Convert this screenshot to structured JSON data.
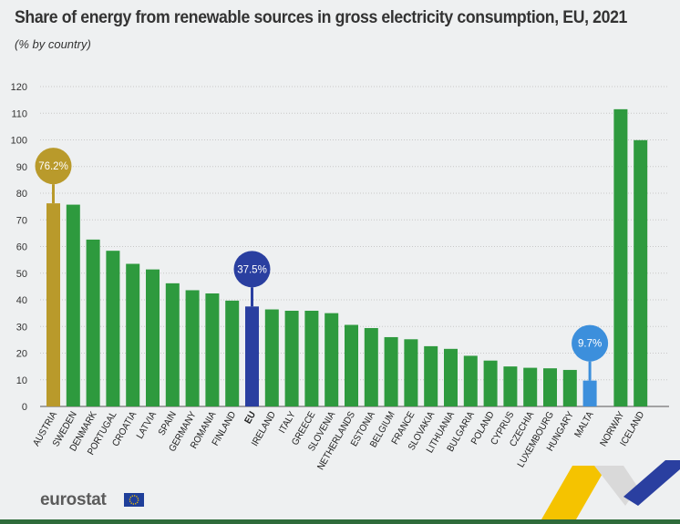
{
  "header": {
    "title": "Share of energy from renewable sources in gross electricity consumption, EU, 2021",
    "subtitle": "(% by country)"
  },
  "footer": {
    "logo_text": "eurostat"
  },
  "colors": {
    "default_bar": "#2e9a3e",
    "highlight_max": "#b99a2b",
    "highlight_eu": "#2a3fa0",
    "highlight_min": "#3c8fdc",
    "axis_text": "#333333",
    "grid": "#c8c8c8"
  },
  "chart_data": {
    "type": "bar",
    "title": "Share of energy from renewable sources in gross electricity consumption, EU, 2021",
    "subtitle": "(% by country)",
    "ylim": [
      0,
      120
    ],
    "yticks": [
      0,
      10,
      20,
      30,
      40,
      50,
      60,
      70,
      80,
      90,
      100,
      110,
      120
    ],
    "grid": true,
    "categories": [
      "AUSTRIA",
      "SWEDEN",
      "DENMARK",
      "PORTUGAL",
      "CROATIA",
      "LATVIA",
      "SPAIN",
      "GERMANY",
      "ROMANIA",
      "FINLAND",
      "EU",
      "IRELAND",
      "ITALY",
      "GREECE",
      "SLOVENIA",
      "NETHERLANDS",
      "ESTONIA",
      "BELGIUM",
      "FRANCE",
      "SLOVAKIA",
      "LITHUANIA",
      "BULGARIA",
      "POLAND",
      "CYPRUS",
      "CZECHIA",
      "LUXEMBOURG",
      "HUNGARY",
      "MALTA",
      "NORWAY",
      "ICELAND"
    ],
    "values": [
      76.2,
      75.7,
      62.6,
      58.4,
      53.5,
      51.4,
      46.2,
      43.6,
      42.4,
      39.7,
      37.5,
      36.4,
      35.9,
      35.9,
      35.0,
      30.6,
      29.4,
      26.0,
      25.2,
      22.6,
      21.6,
      19.0,
      17.2,
      15.0,
      14.5,
      14.3,
      13.7,
      9.7,
      111.5,
      99.9
    ],
    "highlights": [
      {
        "category": "AUSTRIA",
        "label": "76.2%",
        "color": "#b99a2b"
      },
      {
        "category": "EU",
        "label": "37.5%",
        "color": "#2a3fa0"
      },
      {
        "category": "MALTA",
        "label": "9.7%",
        "color": "#3c8fdc"
      }
    ],
    "bold_categories": [
      "EU"
    ]
  }
}
